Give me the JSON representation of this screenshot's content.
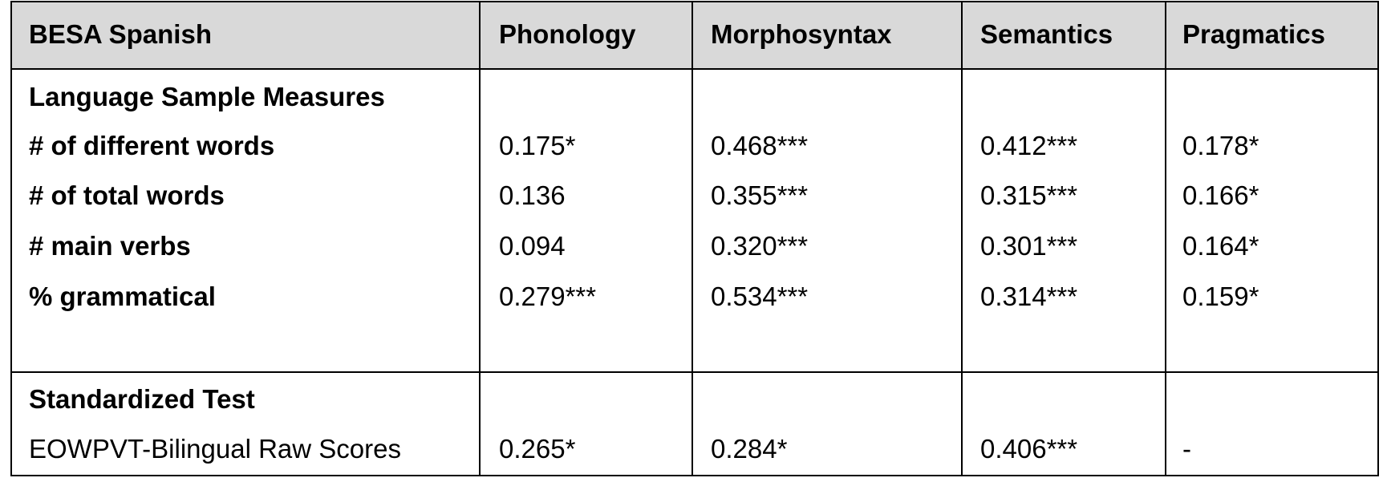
{
  "header": {
    "columns": [
      "BESA Spanish",
      "Phonology",
      "Morphosyntax",
      "Semantics",
      "Pragmatics"
    ]
  },
  "sections": [
    {
      "title": "Language Sample Measures",
      "rows": [
        {
          "label": "# of different words",
          "values": [
            "0.175*",
            "0.468***",
            "0.412***",
            "0.178*"
          ]
        },
        {
          "label": "# of total words",
          "values": [
            "0.136",
            "0.355***",
            "0.315***",
            "0.166*"
          ]
        },
        {
          "label": "# main verbs",
          "values": [
            "0.094",
            "0.320***",
            "0.301***",
            "0.164*"
          ]
        },
        {
          "label": "% grammatical",
          "values": [
            "0.279***",
            "0.534***",
            "0.314***",
            "0.159*"
          ]
        }
      ]
    },
    {
      "title": "Standardized Test",
      "rows": [
        {
          "label": "EOWPVT-Bilingual Raw Scores",
          "values": [
            "0.265*",
            "0.284*",
            "0.406***",
            "-"
          ]
        }
      ]
    }
  ]
}
